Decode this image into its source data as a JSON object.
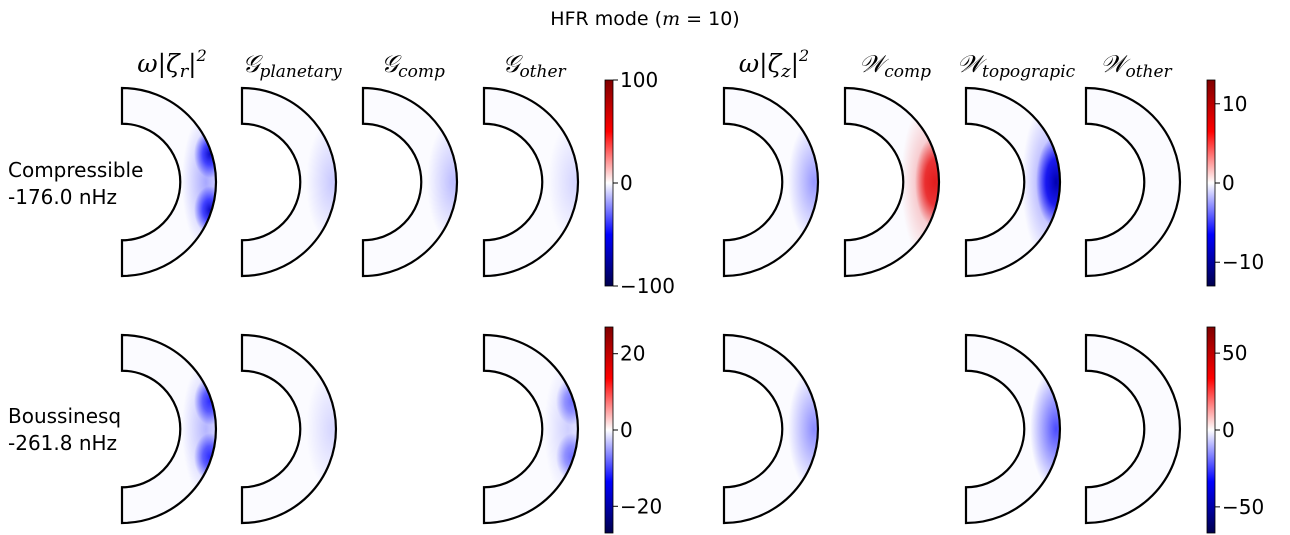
{
  "figure": {
    "title_prefix": "HFR mode (",
    "title_var": "m",
    "title_suffix": " = 10)"
  },
  "columns": [
    {
      "id": "omega_zr",
      "main": "ω|ζ",
      "sub": "r",
      "sup": "2",
      "style": "math"
    },
    {
      "id": "g_planetary",
      "main": "𝒢",
      "sub": "planetary",
      "style": "script"
    },
    {
      "id": "g_comp",
      "main": "𝒢",
      "sub": "comp",
      "style": "script"
    },
    {
      "id": "g_other",
      "main": "𝒢",
      "sub": "other",
      "style": "script"
    },
    {
      "id": "omega_zz",
      "main": "ω|ζ",
      "sub": "z",
      "sup": "2",
      "style": "math"
    },
    {
      "id": "w_comp",
      "main": "𝒲",
      "sub": "comp",
      "style": "script"
    },
    {
      "id": "w_topographic",
      "main": "𝒲",
      "sub": "topograpic",
      "style": "script"
    },
    {
      "id": "w_other",
      "main": "𝒲",
      "sub": "other",
      "style": "script"
    }
  ],
  "rows": [
    {
      "id": "compressible",
      "label_line1": "Compressible",
      "label_line2": "-176.0  nHz"
    },
    {
      "id": "boussinesq",
      "label_line1": "Boussinesq",
      "label_line2": "-261.8  nHz"
    }
  ],
  "chart_data": {
    "type": "heatmap",
    "colormap": "seismic",
    "colormap_colors": [
      "#00004c",
      "#0000ff",
      "#ffffff",
      "#ff0000",
      "#7f0000"
    ],
    "panels": [
      {
        "row": "compressible",
        "column": "omega_zr",
        "present": true,
        "sign": -1,
        "intensity": 0.95,
        "pattern": "lobes"
      },
      {
        "row": "compressible",
        "column": "g_planetary",
        "present": true,
        "sign": -1,
        "intensity": 0.2,
        "pattern": "rim"
      },
      {
        "row": "compressible",
        "column": "g_comp",
        "present": true,
        "sign": -1,
        "intensity": 0.25,
        "pattern": "rim"
      },
      {
        "row": "compressible",
        "column": "g_other",
        "present": true,
        "sign": -1,
        "intensity": 0.15,
        "pattern": "rim"
      },
      {
        "row": "compressible",
        "column": "omega_zz",
        "present": true,
        "sign": -1,
        "intensity": 0.4,
        "pattern": "rim"
      },
      {
        "row": "compressible",
        "column": "w_comp",
        "present": true,
        "sign": 1,
        "intensity": 0.85,
        "pattern": "equator"
      },
      {
        "row": "compressible",
        "column": "w_topographic",
        "present": true,
        "sign": -1,
        "intensity": 1.0,
        "pattern": "equator"
      },
      {
        "row": "compressible",
        "column": "w_other",
        "present": true,
        "sign": 0,
        "intensity": 0.0,
        "pattern": "none"
      },
      {
        "row": "boussinesq",
        "column": "omega_zr",
        "present": true,
        "sign": -1,
        "intensity": 0.8,
        "pattern": "lobes"
      },
      {
        "row": "boussinesq",
        "column": "g_planetary",
        "present": true,
        "sign": -1,
        "intensity": 0.15,
        "pattern": "rim"
      },
      {
        "row": "boussinesq",
        "column": "g_comp",
        "present": false
      },
      {
        "row": "boussinesq",
        "column": "g_other",
        "present": true,
        "sign": -1,
        "intensity": 0.5,
        "pattern": "lobes"
      },
      {
        "row": "boussinesq",
        "column": "omega_zz",
        "present": true,
        "sign": -1,
        "intensity": 0.45,
        "pattern": "rim"
      },
      {
        "row": "boussinesq",
        "column": "w_comp",
        "present": false
      },
      {
        "row": "boussinesq",
        "column": "w_topographic",
        "present": true,
        "sign": -1,
        "intensity": 0.7,
        "pattern": "rim"
      },
      {
        "row": "boussinesq",
        "column": "w_other",
        "present": true,
        "sign": 0,
        "intensity": 0.0,
        "pattern": "none"
      }
    ],
    "colorbars": [
      {
        "id": "cb-compressible-g",
        "row": "compressible",
        "group": "G",
        "vmin": -100,
        "vmax": 100,
        "ticks": [
          100,
          0,
          -100
        ],
        "tick_labels": [
          "100",
          "0",
          "−100"
        ]
      },
      {
        "id": "cb-compressible-w",
        "row": "compressible",
        "group": "W",
        "vmin": -13,
        "vmax": 13,
        "ticks": [
          10,
          0,
          -10
        ],
        "tick_labels": [
          "10",
          "0",
          "−10"
        ]
      },
      {
        "id": "cb-boussinesq-g",
        "row": "boussinesq",
        "group": "G",
        "vmin": -27,
        "vmax": 27,
        "ticks": [
          20,
          0,
          -20
        ],
        "tick_labels": [
          "20",
          "0",
          "−20"
        ]
      },
      {
        "id": "cb-boussinesq-w",
        "row": "boussinesq",
        "group": "W",
        "vmin": -67,
        "vmax": 67,
        "ticks": [
          50,
          0,
          -50
        ],
        "tick_labels": [
          "50",
          "0",
          "−50"
        ]
      }
    ]
  }
}
